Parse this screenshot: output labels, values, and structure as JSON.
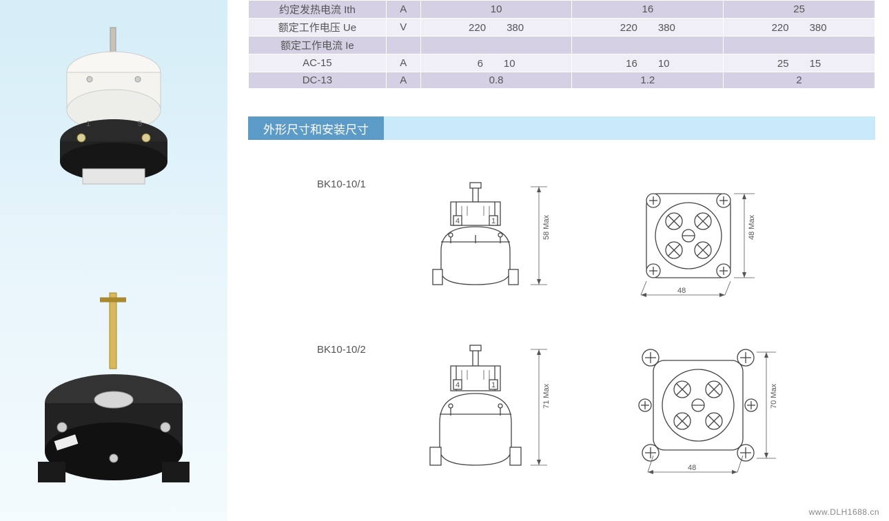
{
  "table": {
    "rows": [
      {
        "label": "约定发热电流  Ith",
        "unit": "A",
        "vals": [
          "10",
          "16",
          "25"
        ],
        "cls": "row-a"
      },
      {
        "label": "额定工作电压  Ue",
        "unit": "V",
        "vals": [
          "220　　380",
          "220　　380",
          "220　　380"
        ],
        "cls": "row-b"
      },
      {
        "label": "额定工作电流  Ie",
        "unit": "",
        "vals": [
          "",
          "",
          ""
        ],
        "cls": "row-a"
      },
      {
        "label": "AC-15",
        "unit": "A",
        "vals": [
          "6　　10",
          "16　　10",
          "25　　15"
        ],
        "cls": "row-b"
      },
      {
        "label": "DC-13",
        "unit": "A",
        "vals": [
          "0.8",
          "1.2",
          "2"
        ],
        "cls": "row-a"
      }
    ],
    "colors": {
      "row_a": "#d5d0e4",
      "row_b": "#f0eef6"
    }
  },
  "section_title": "外形尺寸和安装尺寸",
  "diagrams": [
    {
      "model": "BK10-10/1",
      "front": {
        "height_label": "58 Max",
        "terminals": [
          "4",
          "1"
        ]
      },
      "top": {
        "side_label": "48",
        "height_label": "48 Max"
      }
    },
    {
      "model": "BK10-10/2",
      "front": {
        "height_label": "71 Max",
        "terminals": [
          "4",
          "1"
        ]
      },
      "top": {
        "side_label": "48",
        "height_label": "70 Max"
      }
    }
  ],
  "watermark": "www.DLH1688.cn",
  "colors": {
    "left_gradient_top": "#d4edf7",
    "section_bar_bg": "#c9eafa",
    "section_tab_bg": "#5c9bc7",
    "text": "#555555",
    "stroke": "#444444"
  }
}
